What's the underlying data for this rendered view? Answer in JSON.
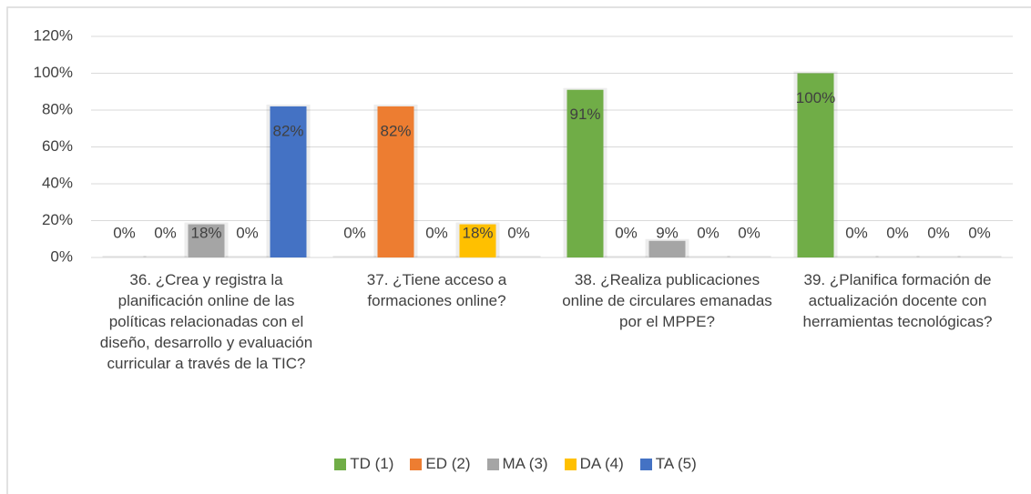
{
  "chart_data": {
    "type": "bar",
    "categories": [
      "36. ¿Crea y registra la planificación online de las políticas relacionadas con el diseño, desarrollo y evaluación curricular a través de la TIC?",
      "37. ¿Tiene acceso a formaciones online?",
      "38. ¿Realiza publicaciones online de circulares emanadas por el MPPE?",
      "39. ¿Planifica formación de actualización docente con herramientas tecnológicas?"
    ],
    "series": [
      {
        "name": "TD (1)",
        "color": "#70ad47",
        "values": [
          0,
          0,
          91,
          100
        ],
        "value_labels": [
          "0%",
          "0%",
          "91%",
          "100%"
        ]
      },
      {
        "name": "ED (2)",
        "color": "#ed7d31",
        "values": [
          0,
          82,
          0,
          0
        ],
        "value_labels": [
          "0%",
          "82%",
          "0%",
          "0%"
        ]
      },
      {
        "name": "MA (3)",
        "color": "#a5a5a5",
        "values": [
          18,
          0,
          9,
          0
        ],
        "value_labels": [
          "18%",
          "0%",
          "9%",
          "0%"
        ]
      },
      {
        "name": "DA (4)",
        "color": "#ffc000",
        "values": [
          0,
          18,
          0,
          0
        ],
        "value_labels": [
          "0%",
          "18%",
          "0%",
          "0%"
        ]
      },
      {
        "name": "TA (5)",
        "color": "#4472c4",
        "values": [
          82,
          0,
          0,
          0
        ],
        "value_labels": [
          "82%",
          "0%",
          "0%",
          "0%"
        ]
      }
    ],
    "ylim": [
      0,
      120
    ],
    "yticks": [
      {
        "value": 0,
        "label": "0%"
      },
      {
        "value": 20,
        "label": "20%"
      },
      {
        "value": 40,
        "label": "40%"
      },
      {
        "value": 60,
        "label": "60%"
      },
      {
        "value": 80,
        "label": "80%"
      },
      {
        "value": 100,
        "label": "100%"
      },
      {
        "value": 120,
        "label": "120%"
      }
    ],
    "grid": true,
    "legend": "bottom"
  }
}
